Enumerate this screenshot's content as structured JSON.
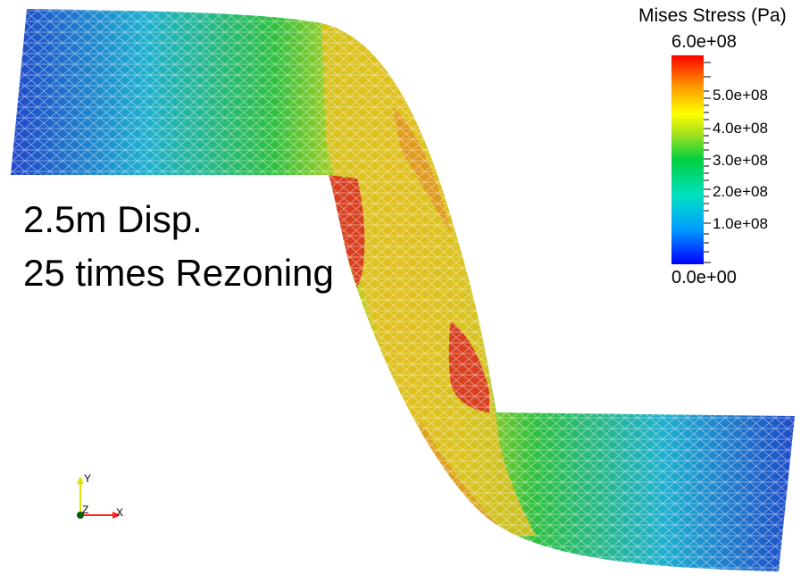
{
  "annotation": {
    "line1": "2.5m Disp.",
    "line2": "25 times Rezoning"
  },
  "legend": {
    "title": "Mises Stress (Pa)",
    "max_label": "6.0e+08",
    "min_label": "0.0e+00",
    "ticks": [
      "5.0e+08",
      "4.0e+08",
      "3.0e+08",
      "2.0e+08",
      "1.0e+08"
    ],
    "range": [
      0,
      600000000
    ],
    "colormap": [
      "#0000ff",
      "#00a0ff",
      "#00e0c0",
      "#00d040",
      "#a0e020",
      "#ffff00",
      "#ff9000",
      "#ff0000"
    ]
  },
  "axes_triad": {
    "x_label": "X",
    "y_label": "Y",
    "z_label": "Z",
    "colors": {
      "x": "#ff2020",
      "y": "#e0e000",
      "z": "#006000"
    }
  },
  "field_colors": {
    "dark_blue": "#1f3fc8",
    "cyan": "#20b0d0",
    "green": "#30c040",
    "yellow_green": "#b0d020",
    "yellow": "#e0c020",
    "orange": "#e08020",
    "red": "#d84020"
  }
}
